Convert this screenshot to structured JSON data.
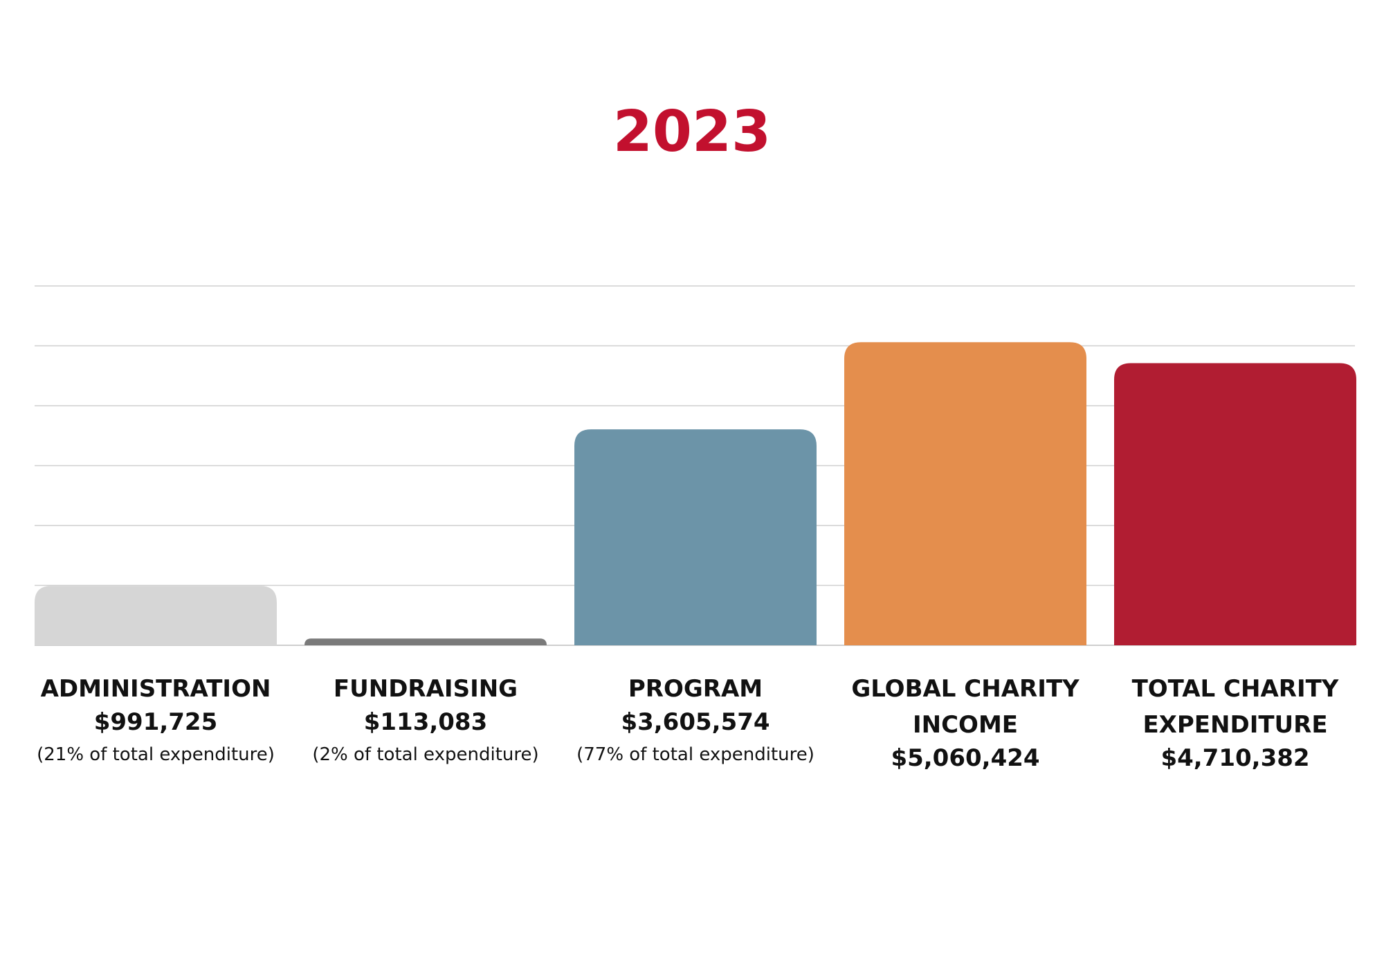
{
  "chart_data": {
    "type": "bar",
    "title": "2023",
    "title_color": "#C2102E",
    "categories": [
      "ADMINISTRATION",
      "FUNDRAISING",
      "PROGRAM",
      "GLOBAL CHARITY INCOME",
      "TOTAL CHARITY EXPENDITURE"
    ],
    "values": [
      991725,
      113083,
      3605574,
      5060424,
      4710382
    ],
    "value_labels": [
      "$991,725",
      "$113,083",
      "$3,605,574",
      "$5,060,424",
      "$4,710,382"
    ],
    "notes": [
      "(21% of total expenditure)",
      "(2% of total expenditure)",
      "(77% of total expenditure)",
      "",
      ""
    ],
    "colors": [
      "#D6D6D6",
      "#7A7A7A",
      "#6C94A8",
      "#E48E4D",
      "#B11D32"
    ],
    "ylim": [
      0,
      6000000
    ],
    "ytick_step": 1000000,
    "grid": true,
    "legend": "none",
    "xlabel": "",
    "ylabel": ""
  }
}
